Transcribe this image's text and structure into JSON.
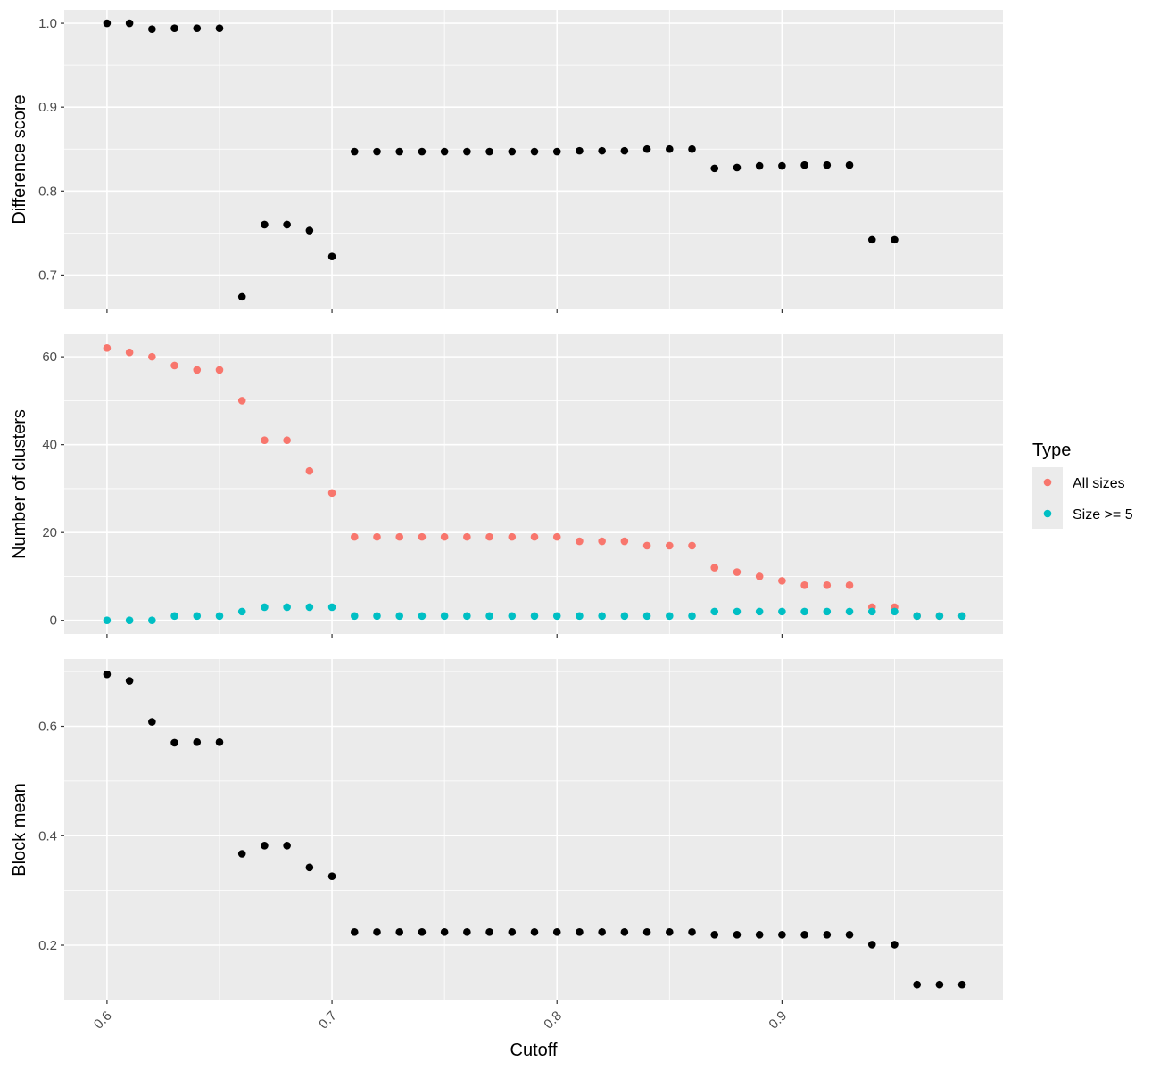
{
  "chart_data": {
    "type": "scatter",
    "xlabel": "Cutoff",
    "xlim": [
      0.581,
      0.9982
    ],
    "x_ticks": [
      0.6,
      0.7,
      0.8,
      0.9
    ],
    "x_tick_labels": [
      "0.6",
      "0.7",
      "0.8",
      "0.9"
    ],
    "x": [
      0.6,
      0.61,
      0.62,
      0.63,
      0.64,
      0.65,
      0.66,
      0.67,
      0.68,
      0.69,
      0.7,
      0.71,
      0.72,
      0.73,
      0.74,
      0.75,
      0.76,
      0.77,
      0.78,
      0.79,
      0.8,
      0.81,
      0.82,
      0.83,
      0.84,
      0.85,
      0.86,
      0.87,
      0.88,
      0.89,
      0.9,
      0.91,
      0.92,
      0.93,
      0.94,
      0.95,
      0.96,
      0.97,
      0.98
    ],
    "grid": true,
    "panels": [
      {
        "ylabel": "Difference score",
        "ylim": [
          0.659,
          1.016
        ],
        "y_ticks": [
          0.7,
          0.8,
          0.9,
          1.0
        ],
        "y_tick_labels": [
          "0.7",
          "0.8",
          "0.9",
          "1.0"
        ],
        "series": [
          {
            "color": "#000000",
            "values": [
              1.0,
              1.0,
              0.993,
              0.994,
              0.994,
              0.994,
              0.674,
              0.76,
              0.76,
              0.753,
              0.722,
              0.847,
              0.847,
              0.847,
              0.847,
              0.847,
              0.847,
              0.847,
              0.847,
              0.847,
              0.847,
              0.848,
              0.848,
              0.848,
              0.85,
              0.85,
              0.85,
              0.827,
              0.828,
              0.83,
              0.83,
              0.831,
              0.831,
              0.831,
              0.742,
              0.742,
              null,
              null,
              null
            ]
          }
        ]
      },
      {
        "ylabel": "Number of clusters",
        "ylim": [
          -3.1,
          65.1
        ],
        "y_ticks": [
          0,
          20,
          40,
          60
        ],
        "y_tick_labels": [
          "0",
          "20",
          "40",
          "60"
        ],
        "series": [
          {
            "name": "All sizes",
            "color": "#F8766D",
            "values": [
              62,
              61,
              60,
              58,
              57,
              57,
              50,
              41,
              41,
              34,
              29,
              19,
              19,
              19,
              19,
              19,
              19,
              19,
              19,
              19,
              19,
              18,
              18,
              18,
              17,
              17,
              17,
              12,
              11,
              10,
              9,
              8,
              8,
              8,
              3,
              3,
              1,
              1,
              1
            ]
          },
          {
            "name": "Size >= 5",
            "color": "#00BFC4",
            "values": [
              0,
              0,
              0,
              1,
              1,
              1,
              2,
              3,
              3,
              3,
              3,
              1,
              1,
              1,
              1,
              1,
              1,
              1,
              1,
              1,
              1,
              1,
              1,
              1,
              1,
              1,
              1,
              2,
              2,
              2,
              2,
              2,
              2,
              2,
              2,
              2,
              1,
              1,
              1
            ]
          }
        ]
      },
      {
        "ylabel": "Block mean",
        "ylim": [
          0.099,
          0.723
        ],
        "y_ticks": [
          0.2,
          0.4,
          0.6
        ],
        "y_tick_labels": [
          "0.2",
          "0.4",
          "0.6"
        ],
        "series": [
          {
            "color": "#000000",
            "values": [
              0.695,
              0.683,
              0.608,
              0.57,
              0.571,
              0.571,
              0.367,
              0.382,
              0.382,
              0.342,
              0.326,
              0.224,
              0.224,
              0.224,
              0.224,
              0.224,
              0.224,
              0.224,
              0.224,
              0.224,
              0.224,
              0.224,
              0.224,
              0.224,
              0.224,
              0.224,
              0.224,
              0.219,
              0.219,
              0.219,
              0.219,
              0.219,
              0.219,
              0.219,
              0.201,
              0.201,
              0.128,
              0.128,
              0.128
            ]
          }
        ]
      }
    ],
    "legend": {
      "title": "Type",
      "placement": "right",
      "entries": [
        {
          "label": "All sizes",
          "color": "#F8766D"
        },
        {
          "label": "Size >= 5",
          "color": "#00BFC4"
        }
      ]
    }
  }
}
